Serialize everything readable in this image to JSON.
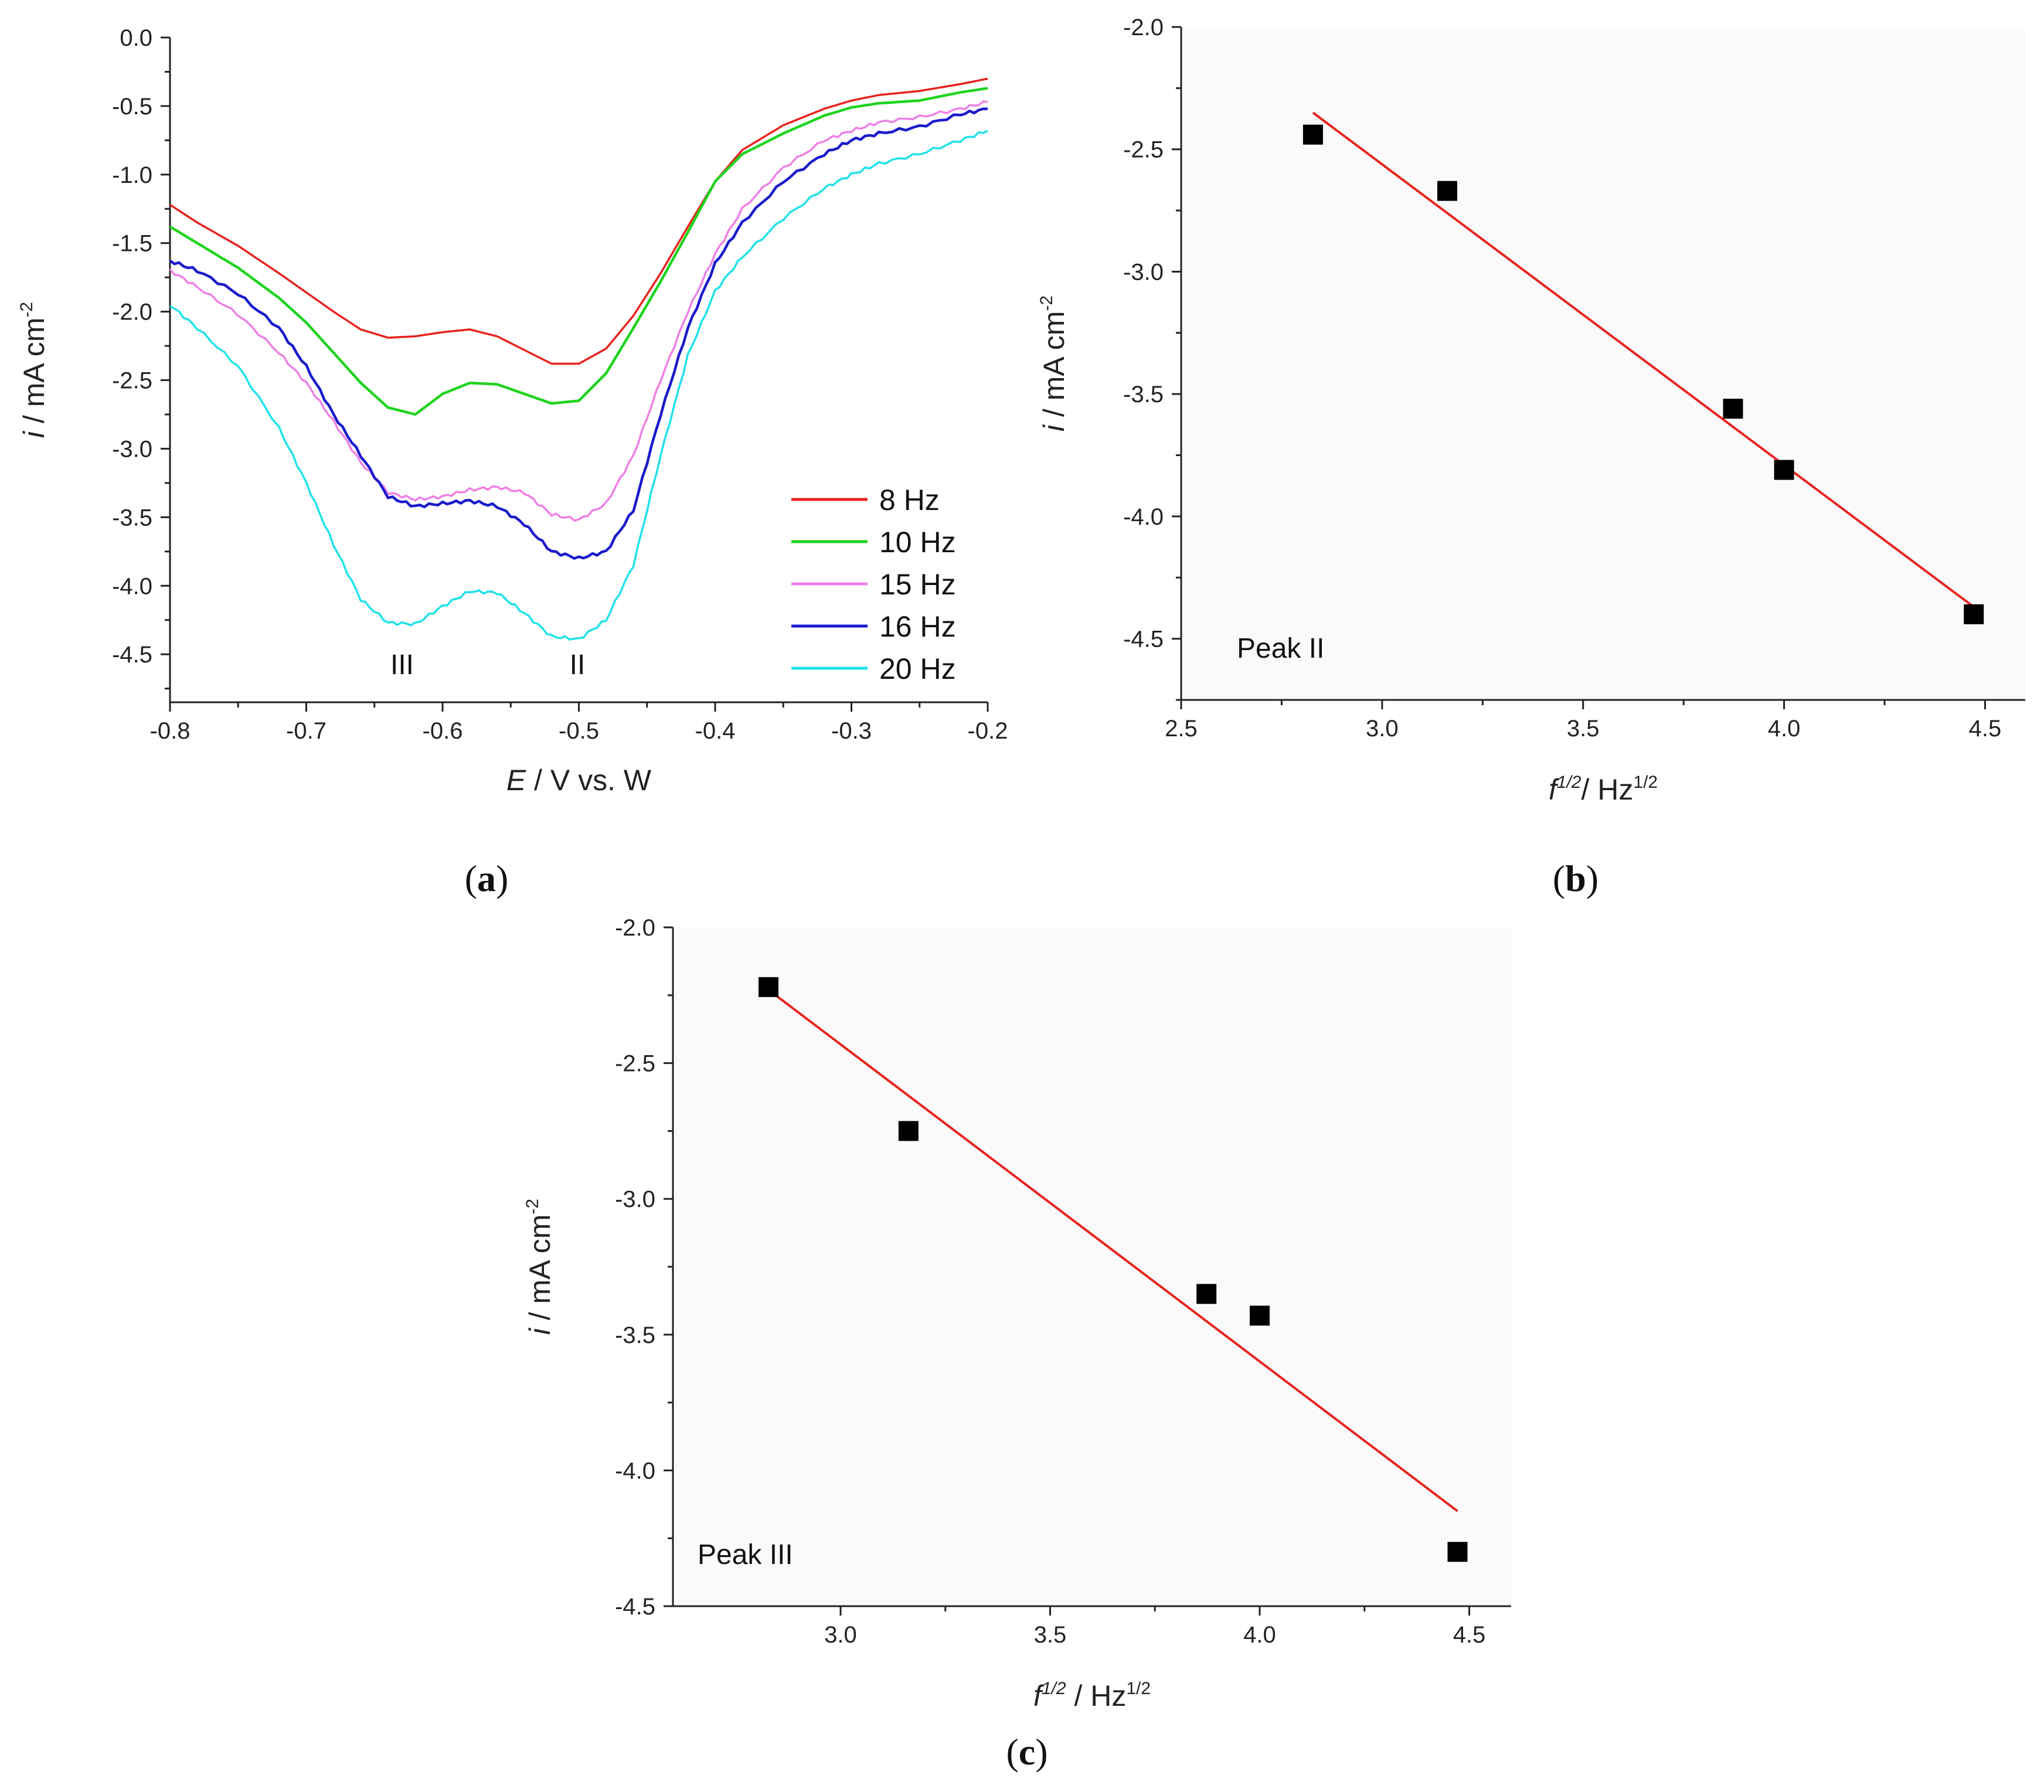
{
  "chart_data": [
    {
      "type": "line",
      "panel": "(a)",
      "panel_letter": "a",
      "xlabel_var": "E",
      "xlabel_rest": " / V vs. W",
      "ylabel_var": "i",
      "ylabel_rest": " / mA cm",
      "ylabel_sup": "-2",
      "xlim": [
        -0.8,
        -0.2
      ],
      "ylim": [
        -4.85,
        0
      ],
      "xticks": [
        "-0.8",
        "-0.7",
        "-0.6",
        "-0.5",
        "-0.4",
        "-0.3",
        "-0.2"
      ],
      "yticks": [
        "0.0",
        "-0.5",
        "-1.0",
        "-1.5",
        "-2.0",
        "-2.5",
        "-3.0",
        "-3.5",
        "-4.0",
        "-4.5"
      ],
      "legend_position": "bottom-right",
      "annotations": [
        "III",
        "II"
      ],
      "x": [
        -0.8,
        -0.78,
        -0.75,
        -0.72,
        -0.7,
        -0.68,
        -0.66,
        -0.64,
        -0.62,
        -0.6,
        -0.58,
        -0.56,
        -0.54,
        -0.52,
        -0.5,
        -0.48,
        -0.46,
        -0.44,
        -0.42,
        -0.4,
        -0.38,
        -0.35,
        -0.32,
        -0.3,
        -0.28,
        -0.25,
        -0.22,
        -0.2
      ],
      "series": [
        {
          "name": "8   Hz",
          "color": "#e8211d",
          "values": [
            -1.22,
            -1.35,
            -1.52,
            -1.72,
            -1.86,
            -2.0,
            -2.13,
            -2.19,
            -2.18,
            -2.15,
            -2.13,
            -2.18,
            -2.28,
            -2.38,
            -2.38,
            -2.27,
            -2.03,
            -1.72,
            -1.38,
            -1.05,
            -0.82,
            -0.64,
            -0.52,
            -0.46,
            -0.42,
            -0.39,
            -0.34,
            -0.3
          ]
        },
        {
          "name": "10 Hz",
          "color": "#1ed31e",
          "values": [
            -1.38,
            -1.5,
            -1.68,
            -1.9,
            -2.08,
            -2.3,
            -2.52,
            -2.7,
            -2.75,
            -2.6,
            -2.52,
            -2.53,
            -2.6,
            -2.67,
            -2.65,
            -2.45,
            -2.12,
            -1.78,
            -1.42,
            -1.05,
            -0.85,
            -0.7,
            -0.57,
            -0.51,
            -0.48,
            -0.46,
            -0.4,
            -0.37
          ]
        },
        {
          "name": "15 Hz",
          "color": "#ee7fe6",
          "values": [
            -1.7,
            -1.82,
            -2.02,
            -2.3,
            -2.52,
            -2.8,
            -3.1,
            -3.32,
            -3.37,
            -3.35,
            -3.3,
            -3.28,
            -3.32,
            -3.48,
            -3.52,
            -3.4,
            -3.05,
            -2.5,
            -2.0,
            -1.58,
            -1.25,
            -0.95,
            -0.75,
            -0.68,
            -0.62,
            -0.58,
            -0.52,
            -0.47
          ]
        },
        {
          "name": "16 Hz",
          "color": "#1a1acd",
          "values": [
            -1.63,
            -1.7,
            -1.87,
            -2.12,
            -2.4,
            -2.75,
            -3.05,
            -3.35,
            -3.42,
            -3.4,
            -3.38,
            -3.42,
            -3.55,
            -3.75,
            -3.8,
            -3.75,
            -3.45,
            -2.75,
            -2.12,
            -1.65,
            -1.35,
            -1.05,
            -0.85,
            -0.75,
            -0.7,
            -0.65,
            -0.56,
            -0.52
          ]
        },
        {
          "name": "20 Hz",
          "color": "#1ee2ea",
          "values": [
            -1.95,
            -2.12,
            -2.4,
            -2.85,
            -3.25,
            -3.7,
            -4.1,
            -4.27,
            -4.28,
            -4.15,
            -4.04,
            -4.05,
            -4.2,
            -4.37,
            -4.39,
            -4.25,
            -3.85,
            -3.05,
            -2.32,
            -1.85,
            -1.6,
            -1.32,
            -1.1,
            -1.0,
            -0.92,
            -0.85,
            -0.75,
            -0.68
          ]
        }
      ]
    },
    {
      "type": "scatter",
      "panel": "(b)",
      "panel_letter": "b",
      "annotation": "Peak II",
      "xlabel_var": "f",
      "xlabel_sup": "1/2",
      "xlabel_rest": "/ Hz",
      "xlabel_sup2": "1/2",
      "ylabel_var": "i",
      "ylabel_rest": " / mA cm",
      "ylabel_sup": "-2",
      "xlim": [
        2.5,
        4.6
      ],
      "ylim": [
        -4.75,
        -2.0
      ],
      "xticks": [
        "2.5",
        "3.0",
        "3.5",
        "4.0",
        "4.5"
      ],
      "yticks": [
        "-2.0",
        "-2.5",
        "-3.0",
        "-3.5",
        "-4.0",
        "-4.5"
      ],
      "x": [
        2.828,
        3.162,
        3.873,
        4.0,
        4.472
      ],
      "y": [
        -2.44,
        -2.67,
        -3.56,
        -3.81,
        -4.4
      ],
      "fit": {
        "x": [
          2.828,
          4.472
        ],
        "y": [
          -2.35,
          -4.37
        ],
        "color": "#e8211d"
      }
    },
    {
      "type": "scatter",
      "panel": "(c)",
      "panel_letter": "c",
      "annotation": "Peak III",
      "xlabel_var": "f",
      "xlabel_sup": "1/2",
      "xlabel_rest": " / Hz",
      "xlabel_sup2": "1/2",
      "ylabel_var": "i",
      "ylabel_rest": " / mA cm",
      "ylabel_sup": "-2",
      "xlim": [
        2.6,
        4.6
      ],
      "ylim": [
        -4.5,
        -2.0
      ],
      "xticks": [
        "3.0",
        "3.5",
        "4.0",
        "4.5"
      ],
      "yticks": [
        "-2.0",
        "-2.5",
        "-3.0",
        "-3.5",
        "-4.0",
        "-4.5"
      ],
      "x": [
        2.828,
        3.162,
        3.873,
        4.0,
        4.472
      ],
      "y": [
        -2.22,
        -2.75,
        -3.35,
        -3.43,
        -4.3
      ],
      "fit": {
        "x": [
          2.828,
          4.472
        ],
        "y": [
          -2.23,
          -4.15
        ],
        "color": "#e8211d"
      }
    }
  ]
}
